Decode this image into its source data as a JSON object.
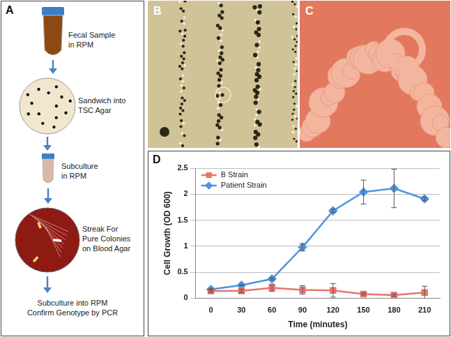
{
  "panel_labels": [
    "A",
    "B",
    "C",
    "D"
  ],
  "diagram": {
    "steps": [
      {
        "lines": [
          "Fecal Sample",
          "in RPM"
        ]
      },
      {
        "lines": [
          "Sandwich into",
          "TSC Agar"
        ]
      },
      {
        "lines": [
          "Subculture",
          "in RPM"
        ]
      },
      {
        "lines": [
          "Streak For",
          "Pure Colonies",
          "on Blood Agar"
        ]
      },
      {
        "lines": [
          "Subculture into RPM",
          "Confirm Genotype by PCR"
        ]
      }
    ]
  },
  "chart_data": {
    "type": "line",
    "xlabel": "Time (minutes)",
    "ylabel": "Cell Growth (OD 600)",
    "categories": [
      "0",
      "30",
      "60",
      "90",
      "120",
      "150",
      "180",
      "210"
    ],
    "ylim": [
      0,
      2.5
    ],
    "yticks": [
      0,
      0.5,
      1,
      1.5,
      2,
      2.5
    ],
    "grid": true,
    "legend": "upper left",
    "series": [
      {
        "name": "B Strain",
        "color": "#e8736c",
        "marker": "square",
        "values": [
          0.14,
          0.14,
          0.2,
          0.16,
          0.15,
          0.08,
          0.06,
          0.11
        ],
        "errors": [
          0.03,
          0.03,
          0.07,
          0.08,
          0.13,
          0.02,
          0.02,
          0.12
        ]
      },
      {
        "name": "Patient Strain",
        "color": "#4f95dc",
        "marker": "diamond",
        "values": [
          0.17,
          0.25,
          0.37,
          0.98,
          1.68,
          2.04,
          2.11,
          1.91
        ],
        "errors": [
          0.02,
          0.01,
          0.02,
          0.07,
          0.03,
          0.23,
          0.37,
          0.03
        ]
      }
    ]
  }
}
